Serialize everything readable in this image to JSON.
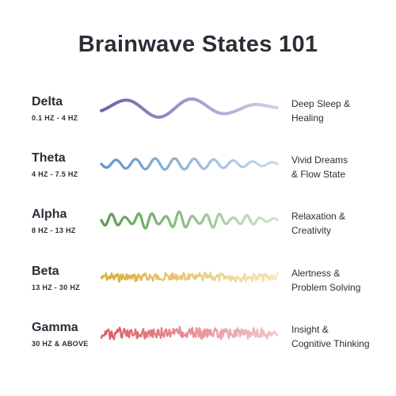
{
  "title": "Brainwave States 101",
  "states": [
    {
      "name": "Delta",
      "range": "0.1 HZ - 4 HZ",
      "desc": [
        "Deep Sleep &",
        "Healing"
      ],
      "color_start": "#7560a8",
      "color_end": "#d6cdea",
      "wave_icon": "slow-wave-icon"
    },
    {
      "name": "Theta",
      "range": "4 HZ - 7.5 HZ",
      "desc": [
        "Vivid Dreams",
        "& Flow State"
      ],
      "color_start": "#5e94c8",
      "color_end": "#c8dcef",
      "wave_icon": "medium-wave-icon"
    },
    {
      "name": "Alpha",
      "range": "8 HZ - 13 HZ",
      "desc": [
        "Relaxation &",
        "Creativity"
      ],
      "color_start": "#5a9c4f",
      "color_end": "#cfe6c8",
      "wave_icon": "alpha-wave-icon"
    },
    {
      "name": "Beta",
      "range": "13 HZ - 30 HZ",
      "desc": [
        "Alertness &",
        "Problem Solving"
      ],
      "color_start": "#d9ae3a",
      "color_end": "#f6e6bb",
      "wave_icon": "fast-wave-icon"
    },
    {
      "name": "Gamma",
      "range": "30 HZ & ABOVE",
      "desc": [
        "Insight &",
        "Cognitive Thinking"
      ],
      "color_start": "#dc5a64",
      "color_end": "#f2c6cb",
      "wave_icon": "dense-wave-icon"
    }
  ]
}
